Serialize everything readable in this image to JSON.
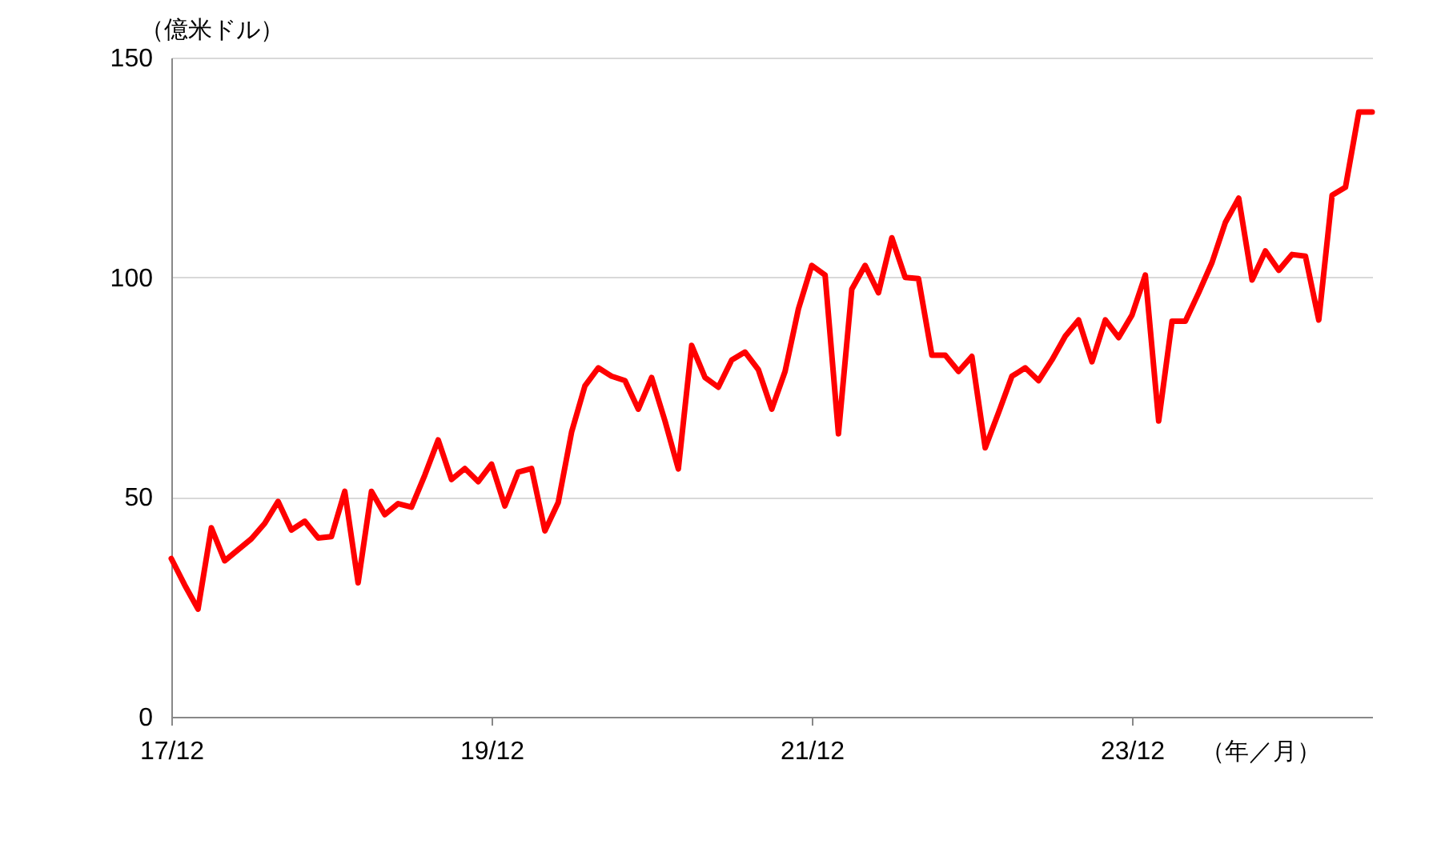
{
  "chart_data": {
    "type": "line",
    "ylabel": "（億米ドル）",
    "xlabel": "（年／月）",
    "categories": [
      "17/12",
      null,
      null,
      null,
      null,
      null,
      null,
      null,
      null,
      null,
      null,
      null,
      null,
      null,
      null,
      null,
      null,
      null,
      null,
      null,
      null,
      null,
      null,
      null,
      "19/12",
      null,
      null,
      null,
      null,
      null,
      null,
      null,
      null,
      null,
      null,
      null,
      null,
      null,
      null,
      null,
      null,
      null,
      null,
      null,
      null,
      null,
      null,
      null,
      "21/12",
      null,
      null,
      null,
      null,
      null,
      null,
      null,
      null,
      null,
      null,
      null,
      null,
      null,
      null,
      null,
      null,
      null,
      null,
      null,
      null,
      null,
      null,
      null,
      "23/12",
      null,
      null,
      null,
      null,
      null,
      null,
      null,
      null,
      null,
      null,
      null,
      null,
      null,
      null,
      null,
      null,
      null,
      null
    ],
    "series": [
      {
        "color": "#ff0000",
        "values": [
          36,
          30,
          24.5,
          43,
          35.5,
          38,
          40.5,
          44,
          49,
          42.5,
          44.5,
          40.7,
          41,
          51.3,
          30.5,
          51.3,
          46,
          48.5,
          47.7,
          55,
          63,
          54,
          56.5,
          53.5,
          57.5,
          48,
          55.7,
          56.5,
          42.3,
          48.8,
          64.8,
          75.3,
          79.4,
          77.5,
          76.5,
          70,
          77.2,
          67.3,
          56.4,
          84.5,
          77.2,
          75,
          81.2,
          83,
          79,
          70,
          78.6,
          92.8,
          102.7,
          100.5,
          64.4,
          97.3,
          102.7,
          96.5,
          109,
          100,
          99.7,
          82.3,
          82.3,
          78.6,
          82,
          61.2,
          69.2,
          77.5,
          79.4,
          76.5,
          81.2,
          86.6,
          90.3,
          80.8,
          90.3,
          86.3,
          91.4,
          100.5,
          67.3,
          90,
          90,
          96.5,
          103.4,
          112.5,
          118,
          99.4,
          106,
          101.6,
          105.2,
          104.8,
          90.3,
          118.7,
          120.5,
          137.6,
          137.6
        ]
      }
    ],
    "ylim": [
      0,
      150
    ],
    "yticks": [
      0,
      50,
      100,
      150
    ],
    "grid": "y",
    "legend": false,
    "marker": "none",
    "line_style": "solid"
  }
}
